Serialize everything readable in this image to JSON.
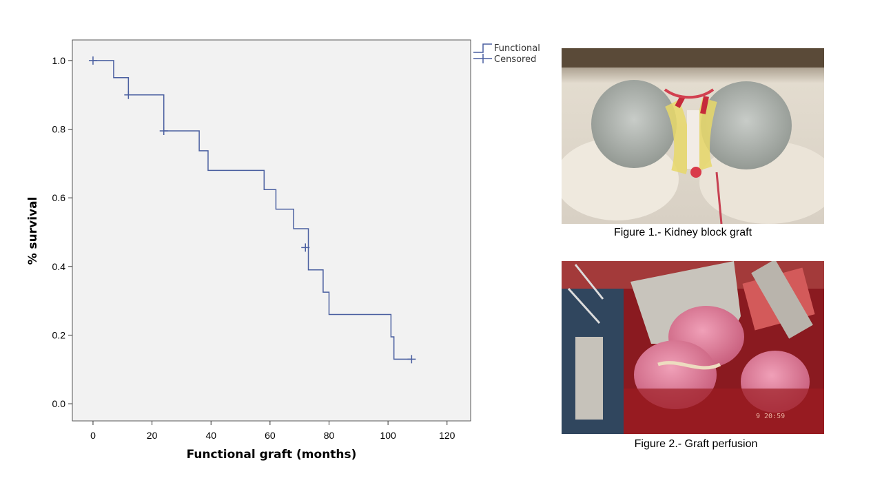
{
  "chart_data": {
    "type": "line",
    "xlabel": "Functional graft (months)",
    "ylabel": "% survival",
    "xlim": [
      -7,
      128
    ],
    "ylim": [
      -0.05,
      1.06
    ],
    "x_ticks": [
      0,
      20,
      40,
      60,
      80,
      100,
      120
    ],
    "y_ticks": [
      0.0,
      0.2,
      0.4,
      0.6,
      0.8,
      1.0
    ],
    "y_tick_labels": [
      "0.0",
      "0.2",
      "0.4",
      "0.6",
      "0.8",
      "1.0"
    ],
    "grid": false,
    "background": "#f2f2f2",
    "legend_position": "top-right-outside",
    "legend": [
      "Functional",
      "Censored"
    ],
    "series_color": "#4a5fa0",
    "step_points": [
      {
        "x": 0,
        "y": 1.0
      },
      {
        "x": 7,
        "y": 0.95
      },
      {
        "x": 12,
        "y": 0.9
      },
      {
        "x": 24,
        "y": 0.795
      },
      {
        "x": 36,
        "y": 0.737
      },
      {
        "x": 39,
        "y": 0.68
      },
      {
        "x": 58,
        "y": 0.624
      },
      {
        "x": 62,
        "y": 0.567
      },
      {
        "x": 68,
        "y": 0.51
      },
      {
        "x": 73,
        "y": 0.39
      },
      {
        "x": 78,
        "y": 0.325
      },
      {
        "x": 80,
        "y": 0.26
      },
      {
        "x": 101,
        "y": 0.195
      },
      {
        "x": 102,
        "y": 0.13
      }
    ],
    "end_x": 108,
    "censored_points": [
      {
        "x": 0,
        "y": 1.0
      },
      {
        "x": 12,
        "y": 0.9
      },
      {
        "x": 24,
        "y": 0.795
      },
      {
        "x": 72,
        "y": 0.455
      },
      {
        "x": 108,
        "y": 0.13
      }
    ]
  },
  "figures": [
    {
      "caption": "Figure 1.- Kidney block graft"
    },
    {
      "caption": "Figure 2.- Graft perfusion",
      "timestamp": "9 20:59"
    }
  ]
}
